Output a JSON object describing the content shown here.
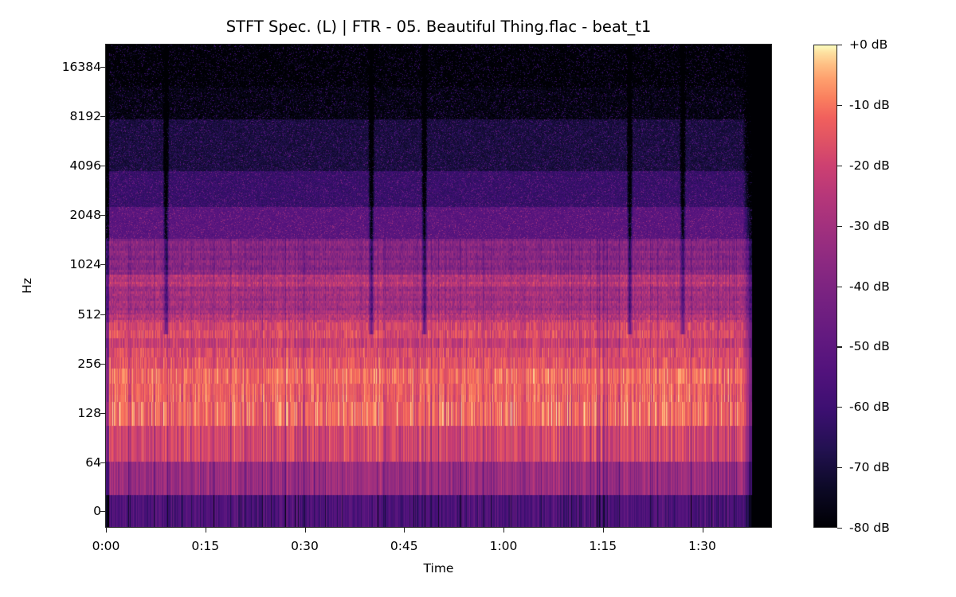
{
  "chart_data": {
    "type": "heatmap",
    "title": "STFT Spec. (L) | FTR - 05. Beautiful Thing.flac - beat_t1",
    "xlabel": "Time",
    "ylabel": "Hz",
    "x_ticks": [
      "0:00",
      "0:15",
      "0:30",
      "0:45",
      "1:00",
      "1:15",
      "1:30"
    ],
    "x_tick_seconds": [
      0,
      15,
      30,
      45,
      60,
      75,
      90
    ],
    "x_range_seconds": [
      0,
      100.5
    ],
    "audio_end_seconds": 97.5,
    "y_ticks": [
      "16384",
      "8192",
      "4096",
      "2048",
      "1024",
      "512",
      "256",
      "128",
      "64",
      "0"
    ],
    "y_scale": "log2 (symlog)",
    "colorbar": {
      "label_format": "%+2.0f dB",
      "ticks": [
        "+0 dB",
        "-10 dB",
        "-20 dB",
        "-30 dB",
        "-40 dB",
        "-50 dB",
        "-60 dB",
        "-70 dB",
        "-80 dB"
      ],
      "range_db": [
        -80,
        0
      ],
      "colormap": "magma"
    },
    "section_breaks_seconds": [
      9,
      40,
      48,
      79,
      87
    ],
    "approx_band_levels_db": {
      "0-32Hz": -50,
      "32-64Hz": -32,
      "64-128Hz": -18,
      "128-256Hz": -10,
      "256-512Hz": -18,
      "512-1024Hz": -28,
      "1024-2048Hz": -45,
      "2048-4096Hz": -58,
      "4096-8192Hz": -68,
      "8192-16384Hz": -75,
      "16384+Hz": -78
    },
    "grid": false,
    "legend_position": "colorbar right"
  },
  "ui": {
    "title": "STFT Spec. (L) | FTR - 05. Beautiful Thing.flac - beat_t1",
    "xlabel": "Time",
    "ylabel": "Hz"
  }
}
